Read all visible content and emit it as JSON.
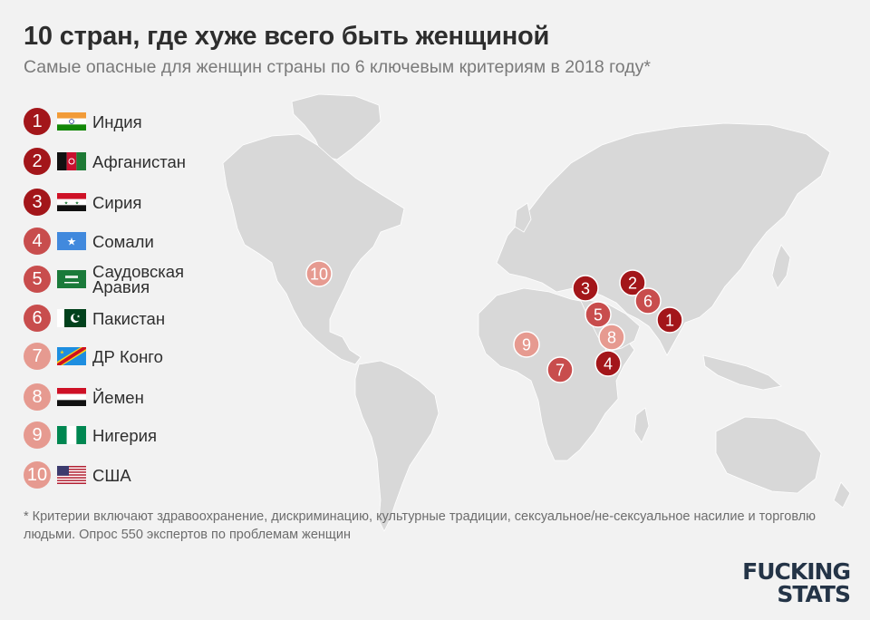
{
  "title": "10 стран, где хуже всего быть женщиной",
  "subtitle": "Самые опасные для женщин страны по 6 ключевым критериям в 2018 году*",
  "colors": {
    "dark": "#a3161a",
    "medium": "#c84d4d",
    "light": "#e69a90",
    "map_land": "#d8d8d8",
    "background": "#f2f2f2"
  },
  "countries": [
    {
      "rank": "1",
      "name": "Индия",
      "tone": "dark",
      "flag": "india-flag"
    },
    {
      "rank": "2",
      "name": "Афганистан",
      "tone": "dark",
      "flag": "afghanistan-flag"
    },
    {
      "rank": "3",
      "name": "Сирия",
      "tone": "dark",
      "flag": "syria-flag"
    },
    {
      "rank": "4",
      "name": "Сомали",
      "tone": "dark",
      "flag": "somalia-flag"
    },
    {
      "rank": "5",
      "name": "Саудовская Аравия",
      "tone": "medium",
      "flag": "saudi-arabia-flag"
    },
    {
      "rank": "6",
      "name": "Пакистан",
      "tone": "medium",
      "flag": "pakistan-flag"
    },
    {
      "rank": "7",
      "name": "ДР Конго",
      "tone": "medium",
      "flag": "dr-congo-flag"
    },
    {
      "rank": "8",
      "name": "Йемен",
      "tone": "light",
      "flag": "yemen-flag"
    },
    {
      "rank": "9",
      "name": "Нигерия",
      "tone": "light",
      "flag": "nigeria-flag"
    },
    {
      "rank": "10",
      "name": "США",
      "tone": "light",
      "flag": "usa-flag"
    }
  ],
  "footnote": "* Критерии включают здравоохранение, дискриминацию, культурные традиции, сексуальное/не-сексуальное насилие и торговлю людьми. Опрос 550 экспертов по проблемам женщин",
  "logo": {
    "line1": "FUCKING",
    "line2": "STATS"
  }
}
